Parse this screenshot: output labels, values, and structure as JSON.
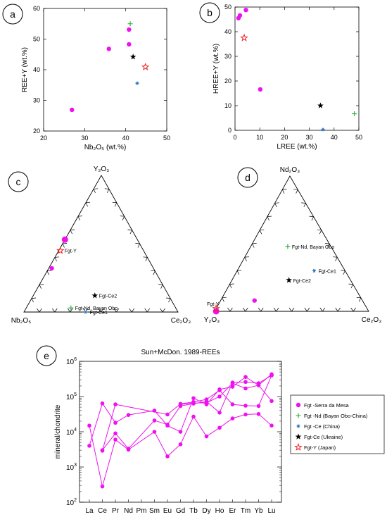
{
  "colors": {
    "serra_da_mesa": "#ee11ee",
    "bayan_obo": "#22aa33",
    "china": "#2a77c4",
    "ukraine": "#000000",
    "japan": "#ee2222",
    "axis": "#000000"
  },
  "chart_data": [
    {
      "panel": "a",
      "type": "scatter",
      "xlabel": "Nb₂O₅ (wt.%)",
      "ylabel": "REE+Y (wt.%)",
      "xlim": [
        20,
        50
      ],
      "ylim": [
        20,
        60
      ],
      "xticks": [
        20,
        30,
        40,
        50
      ],
      "yticks": [
        20,
        30,
        40,
        50,
        60
      ],
      "series": [
        {
          "name": "Fgt -Serra da Mesa",
          "marker": "dot",
          "color": "serra_da_mesa",
          "points": [
            [
              26.9,
              26.9
            ],
            [
              35.9,
              46.8
            ],
            [
              40.8,
              53.1
            ],
            [
              40.8,
              48.3
            ]
          ]
        },
        {
          "name": "Fgt -Nd (Bayan Obo-China)",
          "marker": "plus",
          "color": "bayan_obo",
          "points": [
            [
              41.1,
              55.0
            ]
          ]
        },
        {
          "name": "Fgt -Ce (China)",
          "marker": "asterisk",
          "color": "china",
          "points": [
            [
              42.8,
              35.6
            ]
          ]
        },
        {
          "name": "Fgt-Ce (Ukraine)",
          "marker": "star",
          "color": "ukraine",
          "points": [
            [
              41.8,
              44.2
            ]
          ]
        },
        {
          "name": "Fgt-Y (Japan)",
          "marker": "openstar",
          "color": "japan",
          "points": [
            [
              44.8,
              40.9
            ]
          ]
        }
      ]
    },
    {
      "panel": "b",
      "type": "scatter",
      "xlabel": "LREE (wt.%)",
      "ylabel": "HREE+Y (wt.%)",
      "xlim": [
        0,
        50
      ],
      "ylim": [
        0,
        50
      ],
      "xticks": [
        0,
        10,
        20,
        30,
        40,
        50
      ],
      "yticks": [
        0,
        10,
        20,
        30,
        40,
        50
      ],
      "series": [
        {
          "name": "Fgt -Serra da Mesa",
          "marker": "dot",
          "color": "serra_da_mesa",
          "points": [
            [
              1.4,
              45.5
            ],
            [
              2.0,
              46.6
            ],
            [
              4.4,
              48.8
            ],
            [
              10.2,
              16.6
            ]
          ]
        },
        {
          "name": "Fgt -Nd (Bayan Obo-China)",
          "marker": "plus",
          "color": "bayan_obo",
          "points": [
            [
              48.2,
              6.7
            ]
          ]
        },
        {
          "name": "Fgt -Ce (China)",
          "marker": "asterisk",
          "color": "china",
          "points": [
            [
              35.5,
              0.3
            ]
          ]
        },
        {
          "name": "Fgt-Ce (Ukraine)",
          "marker": "star",
          "color": "ukraine",
          "points": [
            [
              34.5,
              10.0
            ]
          ]
        },
        {
          "name": "Fgt-Y (Japan)",
          "marker": "openstar",
          "color": "japan",
          "points": [
            [
              3.7,
              37.5
            ]
          ]
        }
      ]
    },
    {
      "panel": "c",
      "type": "ternary",
      "apex_top": "Y₂O₃",
      "apex_left": "Nb₂O₅",
      "apex_right": "Ce₂O₃",
      "points": [
        {
          "marker": "dot",
          "color": "serra_da_mesa",
          "big": true,
          "a": 0.53,
          "b": 0.47,
          "c": 0.0,
          "label": ""
        },
        {
          "marker": "dot",
          "color": "serra_da_mesa",
          "big": false,
          "a": 0.32,
          "b": 0.66,
          "c": 0.02,
          "label": ""
        },
        {
          "marker": "openstar",
          "color": "japan",
          "a": 0.45,
          "b": 0.54,
          "c": 0.01,
          "label": "Fgt-Y"
        },
        {
          "marker": "star",
          "color": "ukraine",
          "a": 0.12,
          "b": 0.48,
          "c": 0.4,
          "label": "Fgt-Ce2"
        },
        {
          "marker": "plus",
          "color": "bayan_obo",
          "a": 0.03,
          "b": 0.68,
          "c": 0.29,
          "label": "Fgt-Nd, Bayan Obo"
        },
        {
          "marker": "asterisk",
          "color": "china",
          "a": 0.0,
          "b": 0.6,
          "c": 0.4,
          "label": "Fgt-Ce1"
        }
      ]
    },
    {
      "panel": "d",
      "type": "ternary",
      "apex_top": "Nd₂O₃",
      "apex_left": "Y₂O₃",
      "apex_right": "Ce₂O₃",
      "points": [
        {
          "marker": "dot",
          "color": "serra_da_mesa",
          "big": true,
          "a": 0.0,
          "b": 0.99,
          "c": 0.01,
          "label": ""
        },
        {
          "marker": "dot",
          "color": "serra_da_mesa",
          "big": false,
          "a": 0.08,
          "b": 0.7,
          "c": 0.22,
          "label": ""
        },
        {
          "marker": "openstar",
          "color": "japan",
          "a": 0.02,
          "b": 0.98,
          "c": 0.0,
          "label": "Fgt-Y"
        },
        {
          "marker": "plus",
          "color": "bayan_obo",
          "a": 0.48,
          "b": 0.28,
          "c": 0.24,
          "label": "Fgt-Nd, Bayan Obo"
        },
        {
          "marker": "asterisk",
          "color": "china",
          "a": 0.3,
          "b": 0.2,
          "c": 0.5,
          "label": "Fgt-Ce1"
        },
        {
          "marker": "star",
          "color": "ukraine",
          "a": 0.23,
          "b": 0.4,
          "c": 0.37,
          "label": "Fgt-Ce2"
        }
      ]
    },
    {
      "panel": "e",
      "type": "line",
      "title": "Sun+McDon. 1989-REEs",
      "ylabel": "mineral/chondrite",
      "yscale": "log",
      "ylim": [
        100,
        1000000
      ],
      "ytick_exponents": [
        2,
        3,
        4,
        5,
        6
      ],
      "categories": [
        "La",
        "Ce",
        "Pr",
        "Nd",
        "Pm",
        "Sm",
        "Eu",
        "Gd",
        "Tb",
        "Dy",
        "Ho",
        "Er",
        "Tm",
        "Yb",
        "Lu"
      ],
      "series": [
        {
          "values": [
            15000,
            280,
            6000,
            3100,
            null,
            10000,
            2000,
            4400,
            27000,
            7400,
            13000,
            24000,
            31000,
            32000,
            15000
          ]
        },
        {
          "values": [
            4000,
            64000,
            18000,
            30000,
            null,
            40000,
            15000,
            10000,
            90000,
            60000,
            160000,
            190000,
            360000,
            210000,
            430000
          ]
        },
        {
          "values": [
            null,
            3000,
            9000,
            3300,
            null,
            21000,
            16000,
            54000,
            63000,
            72000,
            35000,
            250000,
            260000,
            240000,
            400000
          ]
        },
        {
          "values": [
            null,
            2900,
            60000,
            null,
            null,
            null,
            31000,
            62000,
            70000,
            83000,
            150000,
            60000,
            55000,
            54000,
            400000
          ]
        },
        {
          "values": [
            null,
            null,
            null,
            null,
            null,
            null,
            null,
            60000,
            65000,
            67000,
            100000,
            240000,
            170000,
            210000,
            75000
          ]
        }
      ],
      "legend": {
        "placement": "right",
        "entries": [
          {
            "marker": "dot",
            "color": "serra_da_mesa",
            "label": "Fgt -Serra da Mesa"
          },
          {
            "marker": "plus",
            "color": "bayan_obo",
            "label": "Fgt -Nd (Bayan Obo-China)"
          },
          {
            "marker": "asterisk",
            "color": "china",
            "label": "Fgt -Ce (China)"
          },
          {
            "marker": "star",
            "color": "ukraine",
            "label": "Fgt-Ce (Ukraine)"
          },
          {
            "marker": "openstar",
            "color": "japan",
            "label": "Fgt-Y (Japan)"
          }
        ]
      }
    }
  ]
}
